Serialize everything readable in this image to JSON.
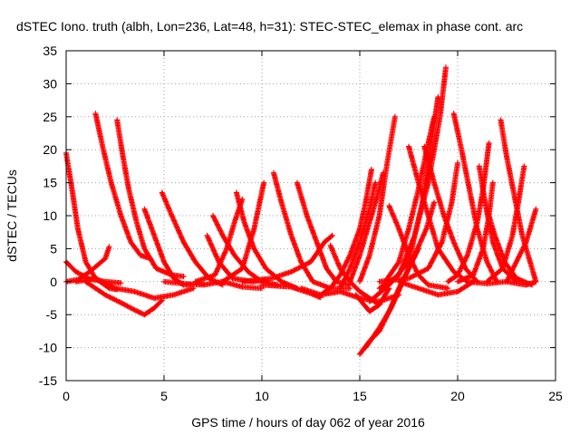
{
  "chart_data": {
    "type": "scatter",
    "title": "dSTEC Iono. truth (albh, Lon=236, Lat=48, h=31): STEC-STEC_elemax in phase cont. arc",
    "xlabel": "GPS time / hours of day 062 of year 2016",
    "ylabel": "dSTEC  / TECUs",
    "xlim": [
      0,
      25
    ],
    "ylim": [
      -15,
      35
    ],
    "x_ticks": [
      0,
      5,
      10,
      15,
      20,
      25
    ],
    "x_tick_labels": [
      "0",
      "5",
      "10",
      "15",
      "20",
      "25"
    ],
    "y_ticks": [
      -15,
      -10,
      -5,
      0,
      5,
      10,
      15,
      20,
      25,
      30,
      35
    ],
    "y_tick_labels": [
      "-15",
      "-10",
      "-5",
      "0",
      "5",
      "10",
      "15",
      "20",
      "25",
      "30",
      "35"
    ],
    "grid": true,
    "marker": "+",
    "color": "#ff0000",
    "series": [
      {
        "values": [
          [
            0.0,
            19.5
          ],
          [
            0.3,
            14
          ],
          [
            0.6,
            8
          ],
          [
            1.0,
            3
          ],
          [
            1.5,
            0.5
          ],
          [
            2.2,
            -1
          ],
          [
            2.6,
            -1.2
          ]
        ]
      },
      {
        "values": [
          [
            0.0,
            3
          ],
          [
            0.5,
            1.5
          ],
          [
            1.2,
            0.4
          ],
          [
            2.0,
            0
          ],
          [
            2.8,
            -0.2
          ]
        ]
      },
      {
        "values": [
          [
            0.0,
            0
          ],
          [
            0.6,
            0.3
          ],
          [
            1.2,
            1.5
          ],
          [
            2.0,
            3.5
          ],
          [
            2.2,
            5.3
          ]
        ]
      },
      {
        "values": [
          [
            1.5,
            25.5
          ],
          [
            1.9,
            20
          ],
          [
            2.3,
            15
          ],
          [
            2.8,
            10
          ],
          [
            3.3,
            6
          ],
          [
            3.8,
            4
          ],
          [
            4.3,
            3.5
          ]
        ]
      },
      {
        "values": [
          [
            2.6,
            24.5
          ],
          [
            2.9,
            19
          ],
          [
            3.2,
            14
          ],
          [
            3.6,
            9
          ],
          [
            4.0,
            5
          ],
          [
            4.6,
            2
          ],
          [
            5.4,
            1
          ],
          [
            6.0,
            0.8
          ]
        ]
      },
      {
        "values": [
          [
            1.0,
            0
          ],
          [
            2.0,
            -2
          ],
          [
            3.0,
            -3.5
          ],
          [
            3.5,
            -4.3
          ],
          [
            4.0,
            -5
          ],
          [
            4.5,
            -4
          ],
          [
            4.9,
            -2.8
          ]
        ]
      },
      {
        "values": [
          [
            0.5,
            0
          ],
          [
            1.5,
            0.5
          ],
          [
            2.5,
            -1
          ],
          [
            3.5,
            -1.5
          ],
          [
            4.5,
            -2.5
          ],
          [
            5.5,
            -2
          ],
          [
            6.5,
            -1
          ]
        ]
      },
      {
        "values": [
          [
            4.0,
            11
          ],
          [
            4.5,
            7
          ],
          [
            5.0,
            3
          ],
          [
            5.5,
            0.5
          ],
          [
            6.0,
            -0.5
          ],
          [
            7.0,
            -0.3
          ]
        ]
      },
      {
        "values": [
          [
            4.9,
            13.5
          ],
          [
            5.4,
            10
          ],
          [
            6.0,
            6
          ],
          [
            6.6,
            3
          ],
          [
            7.3,
            0.5
          ],
          [
            8.0,
            -0.5
          ]
        ]
      },
      {
        "values": [
          [
            5.0,
            0
          ],
          [
            6.0,
            -0.3
          ],
          [
            7.0,
            -0.5
          ],
          [
            8.0,
            0
          ],
          [
            9.0,
            -0.8
          ],
          [
            10.0,
            -1
          ]
        ]
      },
      {
        "values": [
          [
            7.2,
            7
          ],
          [
            7.8,
            3
          ],
          [
            8.5,
            0.5
          ],
          [
            9.5,
            0
          ],
          [
            10.2,
            0.2
          ]
        ]
      },
      {
        "values": [
          [
            7.5,
            10
          ],
          [
            8.0,
            7
          ],
          [
            8.6,
            4
          ],
          [
            9.3,
            1.5
          ],
          [
            10.0,
            0
          ],
          [
            10.8,
            -0.5
          ]
        ]
      },
      {
        "values": [
          [
            8.7,
            13.5
          ],
          [
            9.1,
            9
          ],
          [
            9.6,
            5
          ],
          [
            10.2,
            2
          ],
          [
            11.0,
            0
          ],
          [
            11.8,
            -1
          ]
        ]
      },
      {
        "values": [
          [
            6.6,
            0
          ],
          [
            7.6,
            1
          ],
          [
            8.2,
            5
          ],
          [
            8.6,
            9
          ],
          [
            9.0,
            12.5
          ]
        ]
      },
      {
        "values": [
          [
            8.0,
            0
          ],
          [
            9.0,
            2
          ],
          [
            9.6,
            8
          ],
          [
            10.1,
            15
          ]
        ]
      },
      {
        "values": [
          [
            10.6,
            16.5
          ],
          [
            11.0,
            12
          ],
          [
            11.5,
            7
          ],
          [
            12.0,
            3
          ],
          [
            12.6,
            0
          ],
          [
            13.5,
            -1
          ],
          [
            14.5,
            -1
          ]
        ]
      },
      {
        "values": [
          [
            11.8,
            15
          ],
          [
            12.3,
            10
          ],
          [
            12.8,
            6
          ],
          [
            13.3,
            2
          ],
          [
            13.8,
            0
          ],
          [
            14.5,
            -0.5
          ]
        ]
      },
      {
        "values": [
          [
            9.0,
            0
          ],
          [
            10.5,
            0.5
          ],
          [
            11.5,
            1.5
          ],
          [
            12.5,
            3
          ],
          [
            13.2,
            6
          ],
          [
            13.6,
            7
          ]
        ]
      },
      {
        "values": [
          [
            10.0,
            -0.5
          ],
          [
            11.5,
            -0.8
          ],
          [
            12.5,
            -1.8
          ],
          [
            13.0,
            -2.4
          ]
        ]
      },
      {
        "values": [
          [
            13.0,
            -2
          ],
          [
            13.5,
            -1
          ],
          [
            14.0,
            1
          ],
          [
            14.5,
            4
          ],
          [
            15.0,
            8
          ],
          [
            15.3,
            12
          ],
          [
            15.6,
            17
          ]
        ]
      },
      {
        "values": [
          [
            13.5,
            5.5
          ],
          [
            14.0,
            2
          ],
          [
            14.5,
            0
          ],
          [
            15.0,
            -1.5
          ],
          [
            15.5,
            -2.5
          ],
          [
            16.0,
            -3.5
          ]
        ]
      },
      {
        "values": [
          [
            12.0,
            -1
          ],
          [
            13.0,
            -2
          ],
          [
            14.0,
            -1.5
          ],
          [
            15.0,
            -2.5
          ],
          [
            16.0,
            -3
          ],
          [
            17.0,
            -2
          ]
        ]
      },
      {
        "values": [
          [
            15.0,
            -11
          ],
          [
            15.5,
            -9
          ],
          [
            16.0,
            -7.5
          ],
          [
            16.5,
            -4.5
          ],
          [
            17.0,
            -1
          ],
          [
            17.5,
            2
          ],
          [
            18.0,
            5
          ]
        ]
      },
      {
        "values": [
          [
            15.3,
            -10
          ],
          [
            16.0,
            -7
          ],
          [
            16.6,
            -4
          ],
          [
            17.2,
            0
          ],
          [
            17.8,
            4
          ],
          [
            18.4,
            8
          ],
          [
            18.8,
            12
          ]
        ]
      },
      {
        "values": [
          [
            14.5,
            0
          ],
          [
            15.0,
            4
          ],
          [
            15.5,
            9
          ],
          [
            15.9,
            13
          ],
          [
            16.2,
            16.5
          ]
        ]
      },
      {
        "values": [
          [
            14.0,
            -1
          ],
          [
            14.5,
            2
          ],
          [
            15.0,
            6
          ],
          [
            15.5,
            11
          ],
          [
            15.8,
            15
          ]
        ]
      },
      {
        "values": [
          [
            15.0,
            0
          ],
          [
            15.5,
            4
          ],
          [
            16.0,
            10
          ],
          [
            16.4,
            18
          ],
          [
            16.8,
            25
          ]
        ]
      },
      {
        "values": [
          [
            14.8,
            -2
          ],
          [
            15.5,
            -4.5
          ],
          [
            16.0,
            -3.5
          ],
          [
            16.5,
            -1
          ]
        ]
      },
      {
        "values": [
          [
            15.5,
            -3
          ],
          [
            16.5,
            -0.5
          ],
          [
            17.5,
            3
          ],
          [
            18.2,
            12
          ],
          [
            18.6,
            20
          ],
          [
            19.0,
            28
          ]
        ]
      },
      {
        "values": [
          [
            16.0,
            -1
          ],
          [
            17.0,
            1
          ],
          [
            17.8,
            7
          ],
          [
            18.5,
            15
          ],
          [
            19.1,
            25
          ],
          [
            19.4,
            32.5
          ]
        ]
      },
      {
        "values": [
          [
            16.3,
            0
          ],
          [
            17.0,
            3
          ],
          [
            17.5,
            8
          ],
          [
            18.0,
            14
          ],
          [
            18.5,
            21
          ],
          [
            18.8,
            25
          ]
        ]
      },
      {
        "values": [
          [
            16.5,
            11.5
          ],
          [
            17.0,
            8
          ],
          [
            17.5,
            4
          ],
          [
            18.0,
            1
          ],
          [
            18.5,
            -0.5
          ],
          [
            19.5,
            -1
          ]
        ]
      },
      {
        "values": [
          [
            17.5,
            20.5
          ],
          [
            18.0,
            15
          ],
          [
            18.5,
            10
          ],
          [
            19.0,
            5
          ],
          [
            19.8,
            1.5
          ],
          [
            20.5,
            0
          ]
        ]
      },
      {
        "values": [
          [
            18.3,
            20.5
          ],
          [
            18.8,
            15
          ],
          [
            19.3,
            10
          ],
          [
            19.8,
            6
          ],
          [
            20.4,
            2
          ],
          [
            21.0,
            0
          ]
        ]
      },
      {
        "values": [
          [
            17.0,
            0
          ],
          [
            18.0,
            -1
          ],
          [
            19.0,
            -2
          ],
          [
            20.0,
            -1.5
          ],
          [
            20.8,
            0
          ]
        ]
      },
      {
        "values": [
          [
            16.0,
            0
          ],
          [
            17.5,
            0.5
          ],
          [
            18.5,
            2
          ],
          [
            19.2,
            6
          ],
          [
            19.7,
            12
          ],
          [
            20.0,
            18
          ]
        ]
      },
      {
        "values": [
          [
            19.8,
            25.5
          ],
          [
            20.2,
            20
          ],
          [
            20.6,
            14
          ],
          [
            21.0,
            8
          ],
          [
            21.5,
            3
          ],
          [
            22.0,
            0
          ]
        ]
      },
      {
        "values": [
          [
            19.5,
            0
          ],
          [
            20.0,
            1
          ],
          [
            20.5,
            4
          ],
          [
            21.0,
            9
          ],
          [
            21.3,
            14
          ],
          [
            21.6,
            21
          ]
        ]
      },
      {
        "values": [
          [
            20.0,
            0
          ],
          [
            20.8,
            1
          ],
          [
            21.3,
            5
          ],
          [
            21.6,
            10
          ],
          [
            21.8,
            15
          ]
        ]
      },
      {
        "values": [
          [
            21.1,
            17.5
          ],
          [
            21.4,
            12
          ],
          [
            21.8,
            6
          ],
          [
            22.3,
            2
          ],
          [
            23.0,
            0
          ]
        ]
      },
      {
        "values": [
          [
            21.5,
            11
          ],
          [
            21.9,
            7
          ],
          [
            22.4,
            3
          ],
          [
            23.0,
            0.5
          ],
          [
            23.8,
            -0.5
          ]
        ]
      },
      {
        "values": [
          [
            22.2,
            24.5
          ],
          [
            22.5,
            19
          ],
          [
            22.9,
            13
          ],
          [
            23.3,
            7
          ],
          [
            23.7,
            3
          ],
          [
            24.0,
            0
          ]
        ]
      },
      {
        "values": [
          [
            20.5,
            0
          ],
          [
            21.5,
            -0.3
          ],
          [
            22.5,
            0
          ],
          [
            23.5,
            -0.5
          ],
          [
            24.0,
            0
          ]
        ]
      },
      {
        "values": [
          [
            21.5,
            0
          ],
          [
            22.3,
            2
          ],
          [
            22.8,
            7
          ],
          [
            23.1,
            12
          ],
          [
            23.4,
            17.5
          ]
        ]
      },
      {
        "values": [
          [
            22.5,
            0
          ],
          [
            23.0,
            3
          ],
          [
            23.5,
            6
          ],
          [
            24.0,
            11
          ]
        ]
      }
    ]
  }
}
